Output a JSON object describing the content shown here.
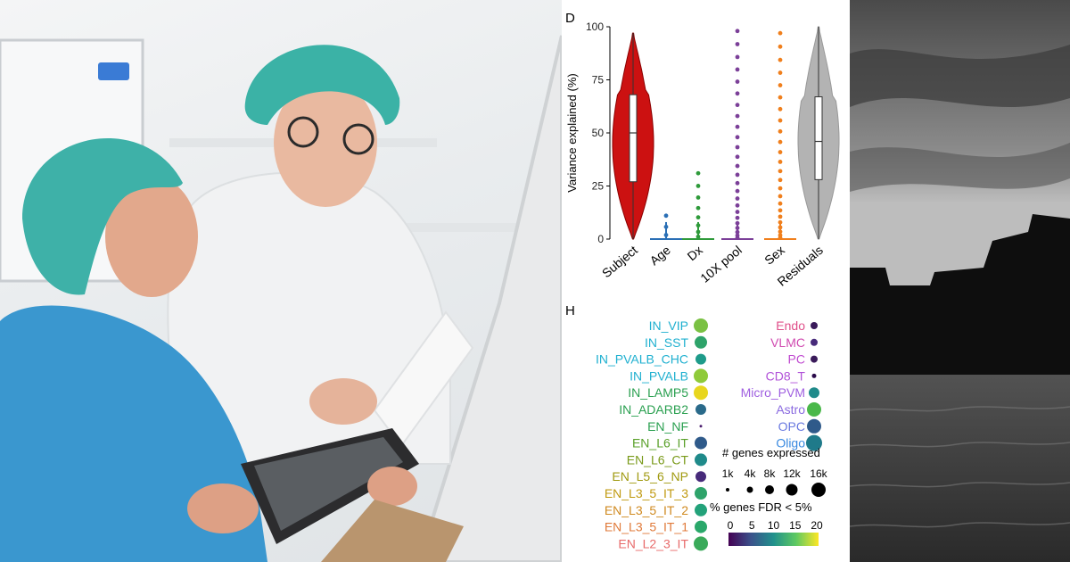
{
  "panel_letters": {
    "top": "D",
    "bottom": "H"
  },
  "chart_data": [
    {
      "type": "violin",
      "ylabel": "Variance explained (%)",
      "ylim": [
        0,
        100
      ],
      "yticks": [
        "100",
        "75",
        "50",
        "25",
        "0"
      ],
      "ytick_values": [
        100,
        75,
        50,
        25,
        0
      ],
      "categories": [
        "Subject",
        "Age",
        "Dx",
        "10X pool",
        "Sex",
        "Residuals"
      ],
      "series": [
        {
          "category": "Subject",
          "color": "#cc1111",
          "min": 0,
          "q1": 27,
          "median": 50,
          "q3": 68,
          "max": 97
        },
        {
          "category": "Age",
          "color": "#2a6fb5",
          "points_max": 11
        },
        {
          "category": "Dx",
          "color": "#2e9a3a",
          "points_max": 31
        },
        {
          "category": "10X pool",
          "color": "#7b3f98",
          "points_max": 98
        },
        {
          "category": "Sex",
          "color": "#f07f1c",
          "points_max": 97
        },
        {
          "category": "Residuals",
          "color": "#b3b3b3",
          "min": 0,
          "q1": 28,
          "median": 46,
          "q3": 67,
          "max": 100
        }
      ]
    },
    {
      "type": "dot",
      "legend_size_title": "# genes expressed",
      "size_labels": [
        "1k",
        "4k",
        "8k",
        "12k",
        "16k"
      ],
      "legend_color_title": "% genes FDR < 5%",
      "color_ticks": [
        "0",
        "5",
        "10",
        "15",
        "20"
      ],
      "left_column": [
        {
          "label": "IN_VIP",
          "label_color": "#1fb0d0",
          "dot_color": "#7ac143",
          "size": 8
        },
        {
          "label": "IN_SST",
          "label_color": "#1fb0d0",
          "dot_color": "#2ea36a",
          "size": 7
        },
        {
          "label": "IN_PVALB_CHC",
          "label_color": "#1fb0d0",
          "dot_color": "#1e9b8a",
          "size": 6
        },
        {
          "label": "IN_PVALB",
          "label_color": "#1fb0d0",
          "dot_color": "#8fca3a",
          "size": 8
        },
        {
          "label": "IN_LAMP5",
          "label_color": "#2aa050",
          "dot_color": "#e8d61e",
          "size": 8
        },
        {
          "label": "IN_ADARB2",
          "label_color": "#2aa050",
          "dot_color": "#2a6a8a",
          "size": 6
        },
        {
          "label": "EN_NF",
          "label_color": "#2aa050",
          "dot_color": "#4b1d6e",
          "size": 1.5
        },
        {
          "label": "EN_L6_IT",
          "label_color": "#5aa02a",
          "dot_color": "#2f5a8a",
          "size": 7
        },
        {
          "label": "EN_L6_CT",
          "label_color": "#7a9a1a",
          "dot_color": "#1f8a8a",
          "size": 7
        },
        {
          "label": "EN_L5_6_NP",
          "label_color": "#a09a10",
          "dot_color": "#472a7a",
          "size": 6
        },
        {
          "label": "EN_L3_5_IT_3",
          "label_color": "#c09a10",
          "dot_color": "#2ea36a",
          "size": 7
        },
        {
          "label": "EN_L3_5_IT_2",
          "label_color": "#d08a20",
          "dot_color": "#23a27a",
          "size": 7
        },
        {
          "label": "EN_L3_5_IT_1",
          "label_color": "#e07a3a",
          "dot_color": "#2aa86a",
          "size": 7
        },
        {
          "label": "EN_L2_3_IT",
          "label_color": "#e86a6a",
          "dot_color": "#3aaa5a",
          "size": 8
        }
      ],
      "right_column": [
        {
          "label": "Endo",
          "label_color": "#e0508a",
          "dot_color": "#3a1a5a",
          "size": 4
        },
        {
          "label": "VLMC",
          "label_color": "#d04ab0",
          "dot_color": "#472a7a",
          "size": 4
        },
        {
          "label": "PC",
          "label_color": "#c04ad0",
          "dot_color": "#3a1a5a",
          "size": 4
        },
        {
          "label": "CD8_T",
          "label_color": "#b050d8",
          "dot_color": "#2a0a4a",
          "size": 2.5
        },
        {
          "label": "Micro_PVM",
          "label_color": "#a060e0",
          "dot_color": "#1f8a8a",
          "size": 6
        },
        {
          "label": "Astro",
          "label_color": "#8a6ae0",
          "dot_color": "#4ab84a",
          "size": 8
        },
        {
          "label": "OPC",
          "label_color": "#6a7ae0",
          "dot_color": "#2f5a8a",
          "size": 8
        },
        {
          "label": "Oligo",
          "label_color": "#3a8ae0",
          "dot_color": "#1f7a8a",
          "size": 9
        }
      ]
    }
  ]
}
